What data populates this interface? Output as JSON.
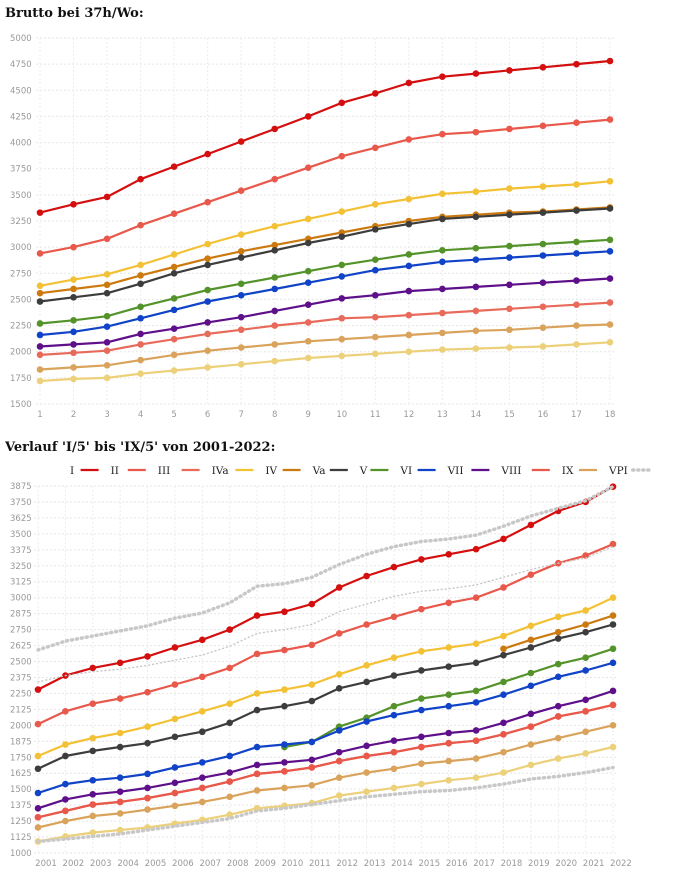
{
  "chart_data": [
    {
      "type": "line",
      "title": "Brutto bei 37h/Wo:",
      "xlabel": "",
      "ylabel": "",
      "x": [
        1,
        2,
        3,
        4,
        5,
        6,
        7,
        8,
        9,
        10,
        11,
        12,
        13,
        14,
        15,
        16,
        17,
        18
      ],
      "ylim": [
        1500,
        5000
      ],
      "yticks": [
        1500,
        1750,
        2000,
        2250,
        2500,
        2750,
        3000,
        3250,
        3500,
        3750,
        4000,
        4250,
        4500,
        4750,
        5000
      ],
      "grid": true,
      "legend": "none",
      "series": [
        {
          "name": "I",
          "color": "#d40f0f",
          "values": [
            3330,
            3410,
            3480,
            3650,
            3770,
            3890,
            4010,
            4130,
            4250,
            4380,
            4470,
            4570,
            4630,
            4660,
            4690,
            4720,
            4750,
            4780
          ]
        },
        {
          "name": "II",
          "color": "#e8584b",
          "values": [
            2940,
            3000,
            3080,
            3210,
            3320,
            3430,
            3540,
            3650,
            3760,
            3870,
            3950,
            4030,
            4080,
            4100,
            4130,
            4160,
            4190,
            4220
          ]
        },
        {
          "name": "IVa",
          "color": "#f3c135",
          "values": [
            2630,
            2690,
            2740,
            2830,
            2930,
            3030,
            3120,
            3200,
            3270,
            3340,
            3410,
            3460,
            3510,
            3530,
            3560,
            3580,
            3600,
            3630
          ]
        },
        {
          "name": "IV",
          "color": "#cc7a0f",
          "values": [
            2560,
            2600,
            2640,
            2730,
            2810,
            2890,
            2960,
            3020,
            3080,
            3140,
            3200,
            3250,
            3290,
            3310,
            3330,
            3340,
            3360,
            3380
          ]
        },
        {
          "name": "Va",
          "color": "#3d3d3d",
          "values": [
            2480,
            2520,
            2560,
            2650,
            2750,
            2830,
            2900,
            2970,
            3040,
            3100,
            3170,
            3220,
            3270,
            3290,
            3310,
            3330,
            3350,
            3370
          ]
        },
        {
          "name": "V",
          "color": "#54932a",
          "values": [
            2270,
            2300,
            2340,
            2430,
            2510,
            2590,
            2650,
            2710,
            2770,
            2830,
            2880,
            2930,
            2970,
            2990,
            3010,
            3030,
            3050,
            3070
          ]
        },
        {
          "name": "VI",
          "color": "#1043c7",
          "values": [
            2160,
            2190,
            2240,
            2320,
            2400,
            2480,
            2540,
            2600,
            2660,
            2720,
            2780,
            2820,
            2860,
            2880,
            2900,
            2920,
            2940,
            2960
          ]
        },
        {
          "name": "VII",
          "color": "#5e0f8a",
          "values": [
            2050,
            2070,
            2090,
            2170,
            2220,
            2280,
            2330,
            2390,
            2450,
            2510,
            2540,
            2580,
            2600,
            2620,
            2640,
            2660,
            2680,
            2700
          ]
        },
        {
          "name": "VIII",
          "color": "#e86a5a",
          "values": [
            1970,
            1990,
            2010,
            2070,
            2120,
            2170,
            2210,
            2250,
            2280,
            2320,
            2330,
            2350,
            2370,
            2390,
            2410,
            2430,
            2450,
            2470
          ]
        },
        {
          "name": "IX",
          "color": "#d9a35c",
          "values": [
            1830,
            1850,
            1870,
            1920,
            1970,
            2010,
            2040,
            2070,
            2100,
            2120,
            2140,
            2160,
            2180,
            2200,
            2210,
            2230,
            2250,
            2260
          ]
        },
        {
          "name": "VPI",
          "color": "#ecd07a",
          "values": [
            1720,
            1740,
            1750,
            1790,
            1820,
            1850,
            1880,
            1910,
            1940,
            1960,
            1980,
            2000,
            2020,
            2030,
            2040,
            2050,
            2070,
            2090
          ]
        }
      ]
    },
    {
      "type": "line",
      "title": "Verlauf 'I/5' bis 'IX/5' von 2001-2022:",
      "xlabel": "",
      "ylabel": "",
      "x": [
        2001,
        2002,
        2003,
        2004,
        2005,
        2006,
        2007,
        2008,
        2009,
        2010,
        2011,
        2012,
        2013,
        2014,
        2015,
        2016,
        2017,
        2018,
        2019,
        2020,
        2021,
        2022
      ],
      "ylim": [
        1000,
        3875
      ],
      "yticks": [
        1000,
        1125,
        1250,
        1375,
        1500,
        1625,
        1750,
        1875,
        2000,
        2125,
        2250,
        2375,
        2500,
        2625,
        2750,
        2875,
        3000,
        3125,
        3250,
        3375,
        3500,
        3625,
        3750,
        3875
      ],
      "grid": true,
      "legend": "top",
      "series": [
        {
          "name": "I",
          "color": "#d40f0f",
          "style": "solid",
          "values": [
            2280,
            2390,
            2450,
            2490,
            2540,
            2610,
            2670,
            2750,
            2860,
            2890,
            2950,
            3080,
            3170,
            3240,
            3300,
            3340,
            3380,
            3460,
            3570,
            3680,
            3750,
            3870
          ]
        },
        {
          "name": "II",
          "color": "#e8584b",
          "style": "solid",
          "values": [
            2010,
            2110,
            2170,
            2210,
            2260,
            2320,
            2380,
            2450,
            2560,
            2590,
            2630,
            2720,
            2790,
            2850,
            2910,
            2960,
            3000,
            3080,
            3180,
            3270,
            3330,
            3420
          ]
        },
        {
          "name": "III",
          "color": "#e86a5a",
          "style": "solid",
          "values": [
            1280,
            1330,
            1380,
            1400,
            1430,
            1470,
            1510,
            1560,
            1620,
            1640,
            1670,
            1720,
            1760,
            1790,
            1830,
            1860,
            1880,
            1930,
            1990,
            2070,
            2110,
            2160
          ]
        },
        {
          "name": "IVa",
          "color": "#f3c135",
          "style": "solid",
          "values": [
            1760,
            1850,
            1900,
            1940,
            1990,
            2050,
            2110,
            2170,
            2250,
            2280,
            2320,
            2400,
            2470,
            2530,
            2580,
            2610,
            2640,
            2700,
            2780,
            2850,
            2900,
            3000
          ]
        },
        {
          "name": "IV",
          "color": "#cc7a0f",
          "style": "solid",
          "values": [
            null,
            null,
            null,
            null,
            null,
            null,
            null,
            null,
            null,
            null,
            null,
            null,
            null,
            null,
            null,
            null,
            null,
            2600,
            2670,
            2730,
            2790,
            2860
          ]
        },
        {
          "name": "Va",
          "color": "#3d3d3d",
          "style": "solid",
          "values": [
            1660,
            1760,
            1800,
            1830,
            1860,
            1910,
            1950,
            2020,
            2120,
            2150,
            2190,
            2290,
            2340,
            2390,
            2430,
            2460,
            2490,
            2550,
            2610,
            2680,
            2730,
            2790
          ]
        },
        {
          "name": "V",
          "color": "#54932a",
          "style": "solid",
          "values": [
            null,
            null,
            null,
            null,
            null,
            null,
            null,
            null,
            null,
            1830,
            1870,
            1990,
            2060,
            2150,
            2210,
            2240,
            2270,
            2340,
            2410,
            2480,
            2530,
            2600
          ]
        },
        {
          "name": "VI",
          "color": "#1043c7",
          "style": "solid",
          "values": [
            1470,
            1540,
            1570,
            1590,
            1620,
            1670,
            1710,
            1760,
            1830,
            1850,
            1870,
            1960,
            2030,
            2080,
            2120,
            2150,
            2180,
            2240,
            2310,
            2380,
            2430,
            2490
          ]
        },
        {
          "name": "VII",
          "color": "#5e0f8a",
          "style": "solid",
          "values": [
            1350,
            1420,
            1460,
            1480,
            1510,
            1550,
            1590,
            1630,
            1690,
            1710,
            1730,
            1790,
            1840,
            1880,
            1910,
            1940,
            1960,
            2020,
            2090,
            2150,
            2200,
            2270
          ]
        },
        {
          "name": "VIII",
          "color": "#e8584b",
          "style": "solid",
          "values": [
            1280,
            1330,
            1380,
            1400,
            1430,
            1470,
            1510,
            1560,
            1620,
            1640,
            1670,
            1720,
            1760,
            1790,
            1830,
            1860,
            1880,
            1930,
            1990,
            2070,
            2110,
            2160
          ]
        },
        {
          "name": "IX",
          "color": "#d9a35c",
          "style": "solid",
          "values": [
            1200,
            1250,
            1290,
            1310,
            1340,
            1370,
            1400,
            1440,
            1490,
            1510,
            1530,
            1590,
            1630,
            1660,
            1700,
            1720,
            1740,
            1790,
            1850,
            1900,
            1950,
            2000
          ]
        },
        {
          "name": "VPI",
          "color": "#ecd07a",
          "style": "solid",
          "values": [
            1090,
            1130,
            1160,
            1180,
            1200,
            1230,
            1260,
            1300,
            1350,
            1370,
            1390,
            1450,
            1480,
            1510,
            1540,
            1570,
            1590,
            1630,
            1690,
            1740,
            1780,
            1830
          ]
        },
        {
          "name": "VPI-upper",
          "color": "#c8c8c8",
          "style": "dotted-thick",
          "values": [
            2590,
            2660,
            2700,
            2740,
            2780,
            2840,
            2880,
            2960,
            3090,
            3110,
            3160,
            3260,
            3340,
            3400,
            3440,
            3460,
            3490,
            3560,
            3640,
            3700,
            3760,
            3870
          ]
        },
        {
          "name": "VPI-mid",
          "color": "#c8c8c8",
          "style": "dotted",
          "values": [
            2340,
            2390,
            2420,
            2440,
            2470,
            2510,
            2550,
            2620,
            2720,
            2750,
            2790,
            2890,
            2950,
            3010,
            3050,
            3070,
            3100,
            3160,
            3220,
            3270,
            3310,
            3400
          ]
        },
        {
          "name": "VPI-lower",
          "color": "#c8c8c8",
          "style": "dotted-thick",
          "values": [
            1090,
            1110,
            1130,
            1150,
            1180,
            1210,
            1240,
            1270,
            1330,
            1350,
            1380,
            1410,
            1440,
            1460,
            1480,
            1490,
            1510,
            1540,
            1580,
            1600,
            1630,
            1670
          ]
        }
      ],
      "legend_entries": [
        {
          "label": "I",
          "color": "#d40f0f"
        },
        {
          "label": "II",
          "color": "#e8584b"
        },
        {
          "label": "III",
          "color": "#e86a5a"
        },
        {
          "label": "IVa",
          "color": "#f3c135"
        },
        {
          "label": "IV",
          "color": "#cc7a0f"
        },
        {
          "label": "Va",
          "color": "#3d3d3d"
        },
        {
          "label": "V",
          "color": "#54932a"
        },
        {
          "label": "VI",
          "color": "#1043c7"
        },
        {
          "label": "VII",
          "color": "#5e0f8a"
        },
        {
          "label": "VIII",
          "color": "#e8584b"
        },
        {
          "label": "IX",
          "color": "#d9a35c"
        },
        {
          "label": "VPI",
          "color": "#c8c8c8",
          "dotted": true
        }
      ]
    }
  ]
}
